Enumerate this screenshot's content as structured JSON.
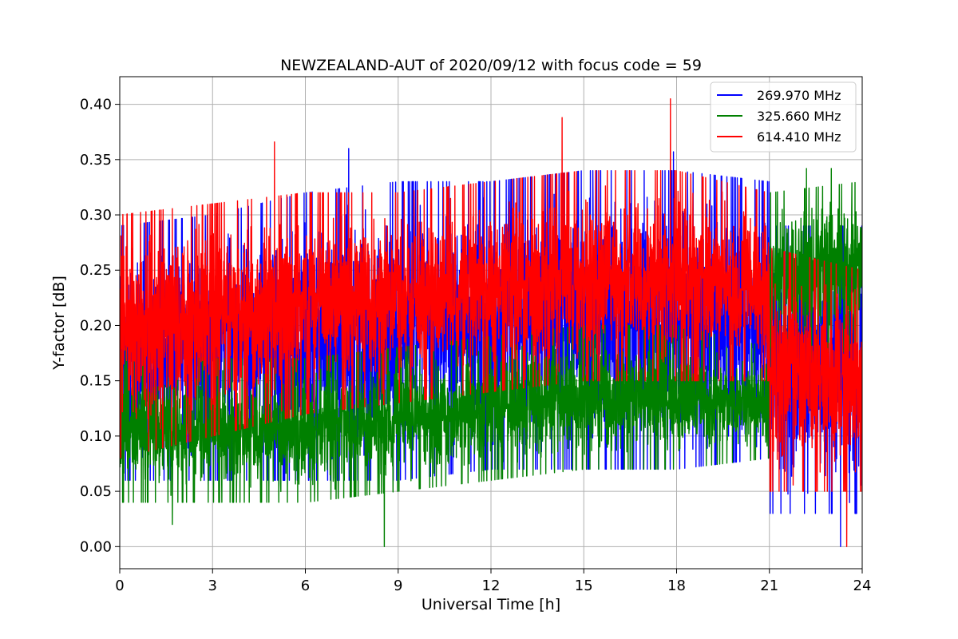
{
  "chart_data": {
    "type": "line",
    "title": "NEWZEALAND-AUT of 2020/09/12 with focus code = 59",
    "xlabel": "Universal Time [h]",
    "ylabel": "Y-factor [dB]",
    "xlim": [
      0,
      24
    ],
    "ylim": [
      -0.02,
      0.425
    ],
    "xticks": [
      0,
      3,
      6,
      9,
      12,
      15,
      18,
      21,
      24
    ],
    "xtick_labels": [
      "0",
      "3",
      "6",
      "9",
      "12",
      "15",
      "18",
      "21",
      "24"
    ],
    "yticks": [
      0.0,
      0.05,
      0.1,
      0.15,
      0.2,
      0.25,
      0.3,
      0.35,
      0.4
    ],
    "ytick_labels": [
      "0.00",
      "0.05",
      "0.10",
      "0.15",
      "0.20",
      "0.25",
      "0.30",
      "0.35",
      "0.40"
    ],
    "grid": true,
    "legend_position": "top-right",
    "series": [
      {
        "name": "269.970 MHz",
        "color": "#0000ff",
        "approx_profile": {
          "x": [
            0,
            3,
            6,
            9,
            12,
            15,
            18,
            21,
            21.01,
            24
          ],
          "low": [
            0.06,
            0.06,
            0.06,
            0.06,
            0.07,
            0.07,
            0.07,
            0.08,
            0.03,
            0.03
          ],
          "high": [
            0.29,
            0.3,
            0.32,
            0.33,
            0.33,
            0.34,
            0.34,
            0.33,
            0.29,
            0.29
          ]
        },
        "noted_values": [
          {
            "x": 7.4,
            "y": 0.36
          },
          {
            "x": 17.9,
            "y": 0.357
          },
          {
            "x": 23.3,
            "y": 0.0
          }
        ]
      },
      {
        "name": "325.660 MHz",
        "color": "#008000",
        "approx_profile": {
          "x": [
            0,
            3,
            6,
            9,
            12,
            15,
            18,
            21,
            21.01,
            24
          ],
          "low": [
            0.04,
            0.04,
            0.04,
            0.05,
            0.06,
            0.07,
            0.07,
            0.08,
            0.16,
            0.18
          ],
          "high": [
            0.18,
            0.17,
            0.17,
            0.18,
            0.19,
            0.2,
            0.2,
            0.18,
            0.32,
            0.33
          ]
        },
        "noted_values": [
          {
            "x": 8.55,
            "y": 0.0
          },
          {
            "x": 1.7,
            "y": 0.02
          },
          {
            "x": 22.2,
            "y": 0.342
          },
          {
            "x": 23.0,
            "y": 0.342
          }
        ]
      },
      {
        "name": "614.410 MHz",
        "color": "#ff0000",
        "approx_profile": {
          "x": [
            0,
            3,
            6,
            9,
            12,
            15,
            18,
            21,
            21.01,
            24
          ],
          "low": [
            0.08,
            0.1,
            0.12,
            0.13,
            0.14,
            0.15,
            0.15,
            0.15,
            0.05,
            0.05
          ],
          "high": [
            0.3,
            0.31,
            0.32,
            0.32,
            0.33,
            0.34,
            0.34,
            0.32,
            0.27,
            0.25
          ]
        },
        "noted_values": [
          {
            "x": 17.8,
            "y": 0.405
          },
          {
            "x": 5.0,
            "y": 0.366
          },
          {
            "x": 14.3,
            "y": 0.388
          },
          {
            "x": 23.5,
            "y": 0.0
          }
        ]
      }
    ]
  }
}
